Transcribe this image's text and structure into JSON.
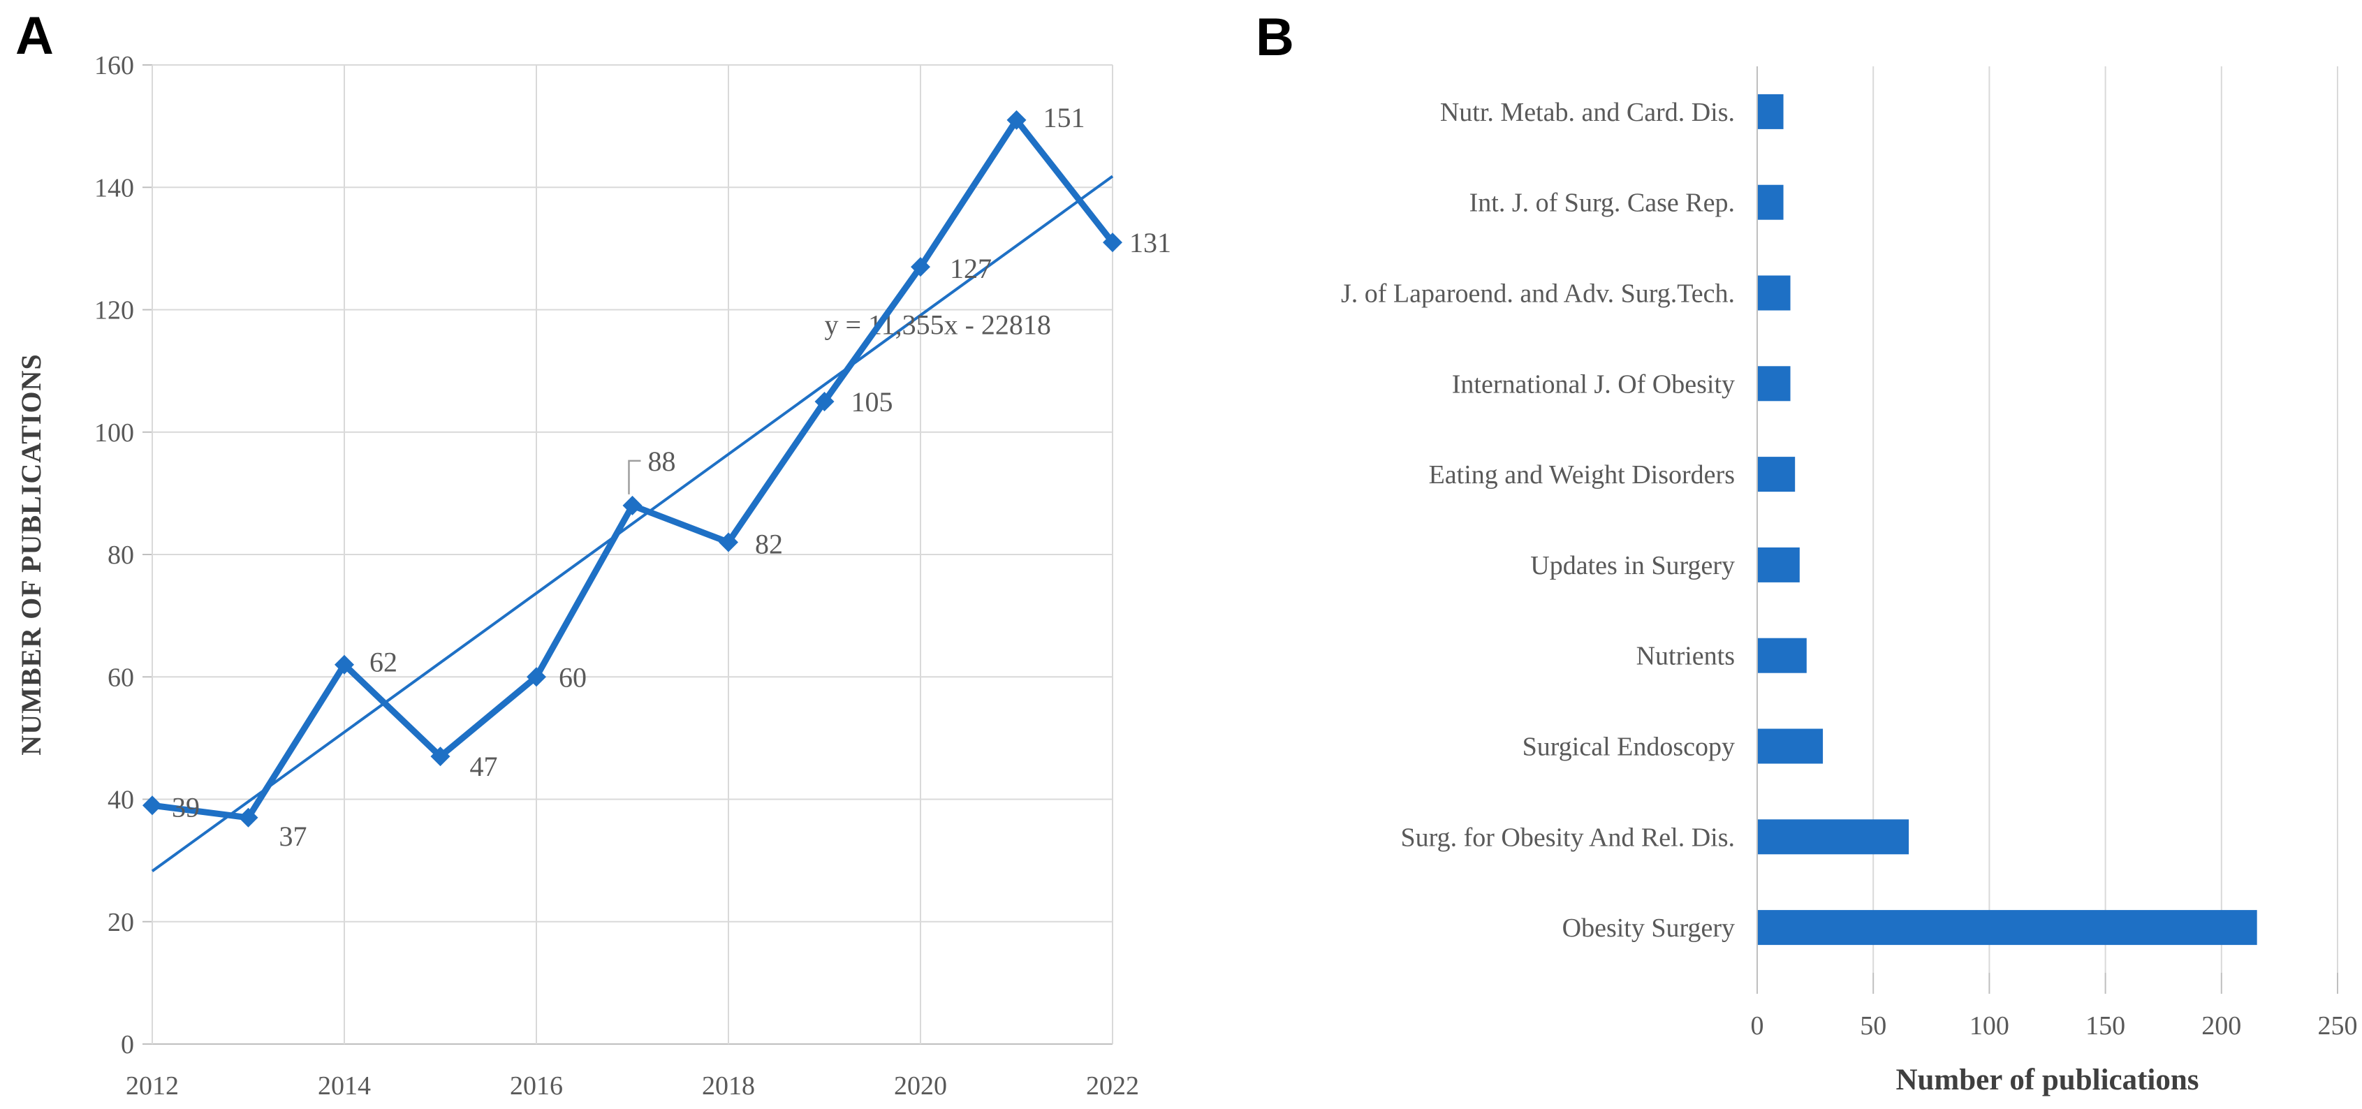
{
  "figure": {
    "background": "#ffffff",
    "accent_blue": "#1E70C5",
    "grid_color": "#D9D9D9",
    "axis_color": "#BFBFBF",
    "label_color": "#595959",
    "title_color": "#3F3F3F",
    "leader_color": "#9E9E9E"
  },
  "panel_a": {
    "letter": "A",
    "y_axis_title": "NUMBER OF PUBLICATIONS",
    "equation_label": "y = 11,355x - 22818"
  },
  "panel_b": {
    "letter": "B",
    "x_axis_title": "Number of publications"
  },
  "chart_data": [
    {
      "type": "line",
      "panel": "A",
      "title": "",
      "xlabel": "",
      "ylabel": "NUMBER OF PUBLICATIONS",
      "x": [
        2012,
        2013,
        2014,
        2015,
        2016,
        2017,
        2018,
        2019,
        2020,
        2021,
        2022
      ],
      "values": [
        39,
        37,
        62,
        47,
        60,
        88,
        82,
        105,
        127,
        151,
        131
      ],
      "data_labels": [
        "39",
        "37",
        "62",
        "47",
        "60",
        "88",
        "82",
        "105",
        "127",
        "151",
        "131"
      ],
      "xlim": [
        2012,
        2022
      ],
      "ylim": [
        0,
        160
      ],
      "yticks": [
        0,
        20,
        40,
        60,
        80,
        100,
        120,
        140,
        160
      ],
      "xticks": [
        2012,
        2014,
        2016,
        2018,
        2020,
        2022
      ],
      "grid": true,
      "legend": "none",
      "marker": "diamond",
      "trendline": {
        "label": "y = 11,355x - 22818",
        "slope": 11.355,
        "intercept": -22818
      }
    },
    {
      "type": "bar",
      "panel": "B",
      "orientation": "horizontal",
      "title": "",
      "xlabel": "Number of publications",
      "ylabel": "",
      "categories": [
        "Nutr. Metab. and Card. Dis.",
        "Int. J. of Surg. Case Rep.",
        "J. of Laparoend. and Adv. Surg.Tech.",
        "International J. Of Obesity",
        "Eating and Weight Disorders",
        "Updates in Surgery",
        "Nutrients",
        "Surgical Endoscopy",
        "Surg. for Obesity And Rel. Dis.",
        "Obesity Surgery"
      ],
      "values": [
        11,
        11,
        14,
        14,
        16,
        18,
        21,
        28,
        65,
        215
      ],
      "xlim": [
        0,
        250
      ],
      "xticks": [
        0,
        50,
        100,
        150,
        200,
        250
      ],
      "grid": true,
      "legend": "none"
    }
  ]
}
